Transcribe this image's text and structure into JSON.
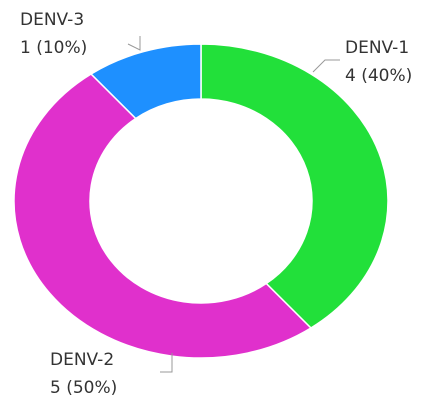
{
  "chart_data": {
    "type": "donut",
    "categories": [
      "DENV-1",
      "DENV-2",
      "DENV-3"
    ],
    "values": [
      4,
      5,
      1
    ],
    "value_labels": [
      "4 (40%)",
      "5 (50%)",
      "1 (10%)"
    ],
    "colors": [
      "#22e03a",
      "#e030cc",
      "#1e90ff"
    ]
  }
}
